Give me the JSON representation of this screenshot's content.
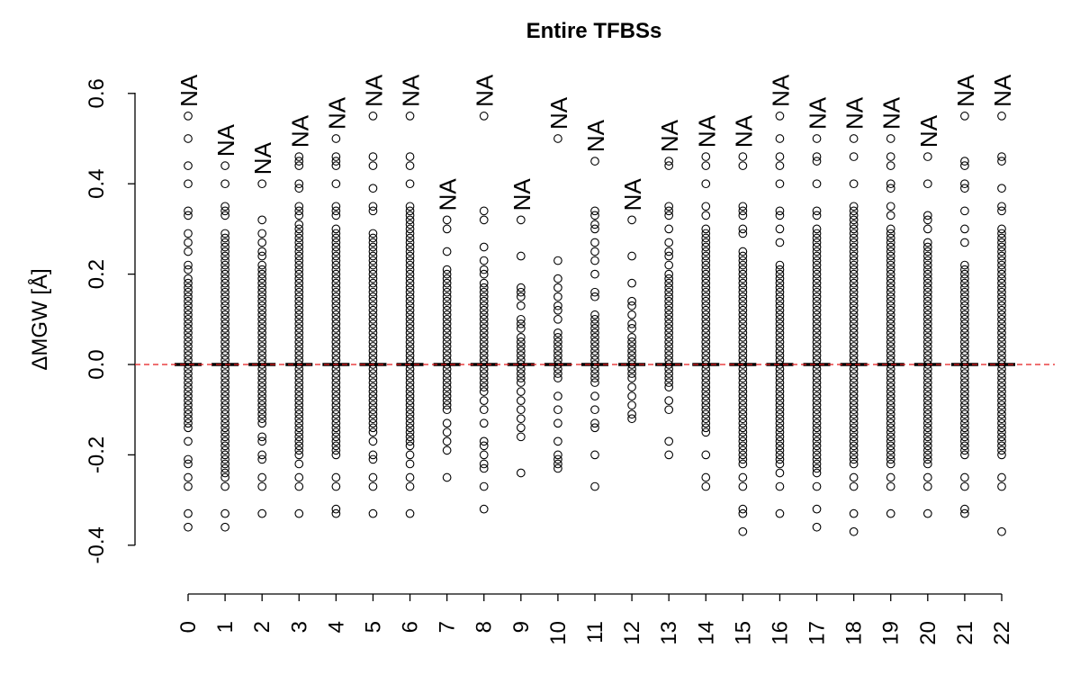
{
  "chart_data": {
    "type": "scatter",
    "title": "Entire TFBSs",
    "xlabel": "",
    "ylabel": "ΔMGW [Å]",
    "ylim": [
      -0.4,
      0.6
    ],
    "yticks": [
      "-0.4",
      "-0.2",
      "0.0",
      "0.2",
      "0.4",
      "0.6"
    ],
    "ytick_values": [
      -0.4,
      -0.2,
      0.0,
      0.2,
      0.4,
      0.6
    ],
    "reference_line": {
      "y": 0,
      "color": "#e41a1c",
      "style": "dashed"
    },
    "annotation_text": "NA",
    "dense_step": 0.01,
    "groups": [
      {
        "label": "0",
        "dense": [
          -0.14,
          0.19
        ],
        "extra": [
          0.55,
          0.5,
          0.44,
          0.4,
          0.34,
          0.33,
          0.29,
          0.27,
          0.25,
          0.22,
          0.21,
          -0.17,
          -0.21,
          -0.22,
          -0.25,
          -0.27,
          -0.33,
          -0.36
        ]
      },
      {
        "label": "1",
        "dense": [
          -0.25,
          0.28
        ],
        "extra": [
          0.44,
          0.4,
          0.35,
          0.34,
          0.33,
          0.29,
          -0.27,
          -0.33,
          -0.36
        ]
      },
      {
        "label": "2",
        "dense": [
          -0.13,
          0.22
        ],
        "extra": [
          0.4,
          0.32,
          0.29,
          0.27,
          0.25,
          0.24,
          -0.16,
          -0.17,
          -0.2,
          -0.21,
          -0.25,
          -0.27,
          -0.33
        ]
      },
      {
        "label": "3",
        "dense": [
          -0.2,
          0.31
        ],
        "extra": [
          0.46,
          0.45,
          0.44,
          0.4,
          0.39,
          0.35,
          0.34,
          0.33,
          -0.22,
          -0.25,
          -0.27,
          -0.33
        ]
      },
      {
        "label": "4",
        "dense": [
          -0.2,
          0.3
        ],
        "extra": [
          0.5,
          0.46,
          0.45,
          0.44,
          0.4,
          0.35,
          0.34,
          0.33,
          -0.25,
          -0.27,
          -0.32,
          -0.33
        ]
      },
      {
        "label": "5",
        "dense": [
          -0.15,
          0.29
        ],
        "extra": [
          0.55,
          0.46,
          0.44,
          0.39,
          0.35,
          0.34,
          -0.17,
          -0.2,
          -0.21,
          -0.25,
          -0.27,
          -0.33
        ]
      },
      {
        "label": "6",
        "dense": [
          -0.18,
          0.33
        ],
        "extra": [
          0.55,
          0.46,
          0.44,
          0.4,
          0.35,
          0.34,
          -0.2,
          -0.22,
          -0.25,
          -0.27,
          -0.33
        ]
      },
      {
        "label": "7",
        "dense": [
          -0.1,
          0.19
        ],
        "extra": [
          0.32,
          0.3,
          0.25,
          0.21,
          0.2,
          -0.13,
          -0.15,
          -0.17,
          -0.19,
          -0.25
        ]
      },
      {
        "label": "8",
        "dense": [
          -0.06,
          0.18
        ],
        "extra": [
          0.55,
          0.34,
          0.32,
          0.26,
          0.23,
          0.21,
          0.2,
          -0.08,
          -0.1,
          -0.13,
          -0.17,
          -0.18,
          -0.2,
          -0.22,
          -0.23,
          -0.27,
          -0.32
        ]
      },
      {
        "label": "9",
        "dense": [
          -0.04,
          0.06
        ],
        "extra": [
          0.32,
          0.24,
          0.17,
          0.16,
          0.15,
          0.13,
          0.1,
          0.09,
          0.08,
          -0.06,
          -0.08,
          -0.1,
          -0.12,
          -0.14,
          -0.16,
          -0.24
        ]
      },
      {
        "label": "10",
        "dense": [
          -0.03,
          0.07
        ],
        "extra": [
          0.5,
          0.23,
          0.19,
          0.17,
          0.15,
          0.13,
          0.12,
          0.1,
          -0.07,
          -0.1,
          -0.13,
          -0.17,
          -0.2,
          -0.21,
          -0.22,
          -0.23
        ]
      },
      {
        "label": "11",
        "dense": [
          -0.04,
          0.11
        ],
        "extra": [
          0.45,
          0.34,
          0.33,
          0.31,
          0.3,
          0.27,
          0.25,
          0.23,
          0.2,
          0.16,
          0.15,
          -0.07,
          -0.1,
          -0.13,
          -0.14,
          -0.2,
          -0.27
        ]
      },
      {
        "label": "12",
        "dense": [
          -0.03,
          0.06
        ],
        "extra": [
          0.32,
          0.24,
          0.18,
          0.14,
          0.13,
          0.11,
          0.09,
          0.08,
          -0.05,
          -0.07,
          -0.09,
          -0.11,
          -0.12
        ]
      },
      {
        "label": "13",
        "dense": [
          -0.05,
          0.2
        ],
        "extra": [
          0.45,
          0.44,
          0.35,
          0.34,
          0.33,
          0.3,
          0.27,
          0.25,
          0.24,
          0.22,
          -0.08,
          -0.1,
          -0.17,
          -0.2
        ]
      },
      {
        "label": "14",
        "dense": [
          -0.15,
          0.3
        ],
        "extra": [
          0.46,
          0.44,
          0.4,
          0.35,
          0.33,
          -0.2,
          -0.25,
          -0.27
        ]
      },
      {
        "label": "15",
        "dense": [
          -0.22,
          0.25
        ],
        "extra": [
          0.46,
          0.44,
          0.35,
          0.34,
          0.33,
          0.3,
          0.29,
          -0.25,
          -0.27,
          -0.32,
          -0.33,
          -0.37
        ]
      },
      {
        "label": "16",
        "dense": [
          -0.22,
          0.22
        ],
        "extra": [
          0.55,
          0.5,
          0.46,
          0.44,
          0.4,
          0.34,
          0.33,
          0.3,
          0.27,
          -0.24,
          -0.27,
          -0.33
        ]
      },
      {
        "label": "17",
        "dense": [
          -0.24,
          0.3
        ],
        "extra": [
          0.5,
          0.46,
          0.45,
          0.4,
          0.34,
          0.33,
          -0.27,
          -0.32,
          -0.36
        ]
      },
      {
        "label": "18",
        "dense": [
          -0.22,
          0.33
        ],
        "extra": [
          0.5,
          0.46,
          0.4,
          0.35,
          0.34,
          -0.25,
          -0.27,
          -0.33,
          -0.37
        ]
      },
      {
        "label": "19",
        "dense": [
          -0.22,
          0.3
        ],
        "extra": [
          0.5,
          0.46,
          0.44,
          0.4,
          0.39,
          0.35,
          0.33,
          -0.25,
          -0.27,
          -0.33
        ]
      },
      {
        "label": "20",
        "dense": [
          -0.22,
          0.27
        ],
        "extra": [
          0.46,
          0.4,
          0.33,
          0.32,
          0.3,
          -0.25,
          -0.27,
          -0.33
        ]
      },
      {
        "label": "21",
        "dense": [
          -0.2,
          0.22
        ],
        "extra": [
          0.55,
          0.45,
          0.44,
          0.4,
          0.39,
          0.34,
          0.3,
          0.27,
          -0.25,
          -0.27,
          -0.32,
          -0.33
        ]
      },
      {
        "label": "22",
        "dense": [
          -0.2,
          0.3
        ],
        "extra": [
          0.55,
          0.46,
          0.45,
          0.39,
          0.35,
          0.34,
          -0.25,
          -0.27,
          -0.37
        ]
      }
    ]
  }
}
